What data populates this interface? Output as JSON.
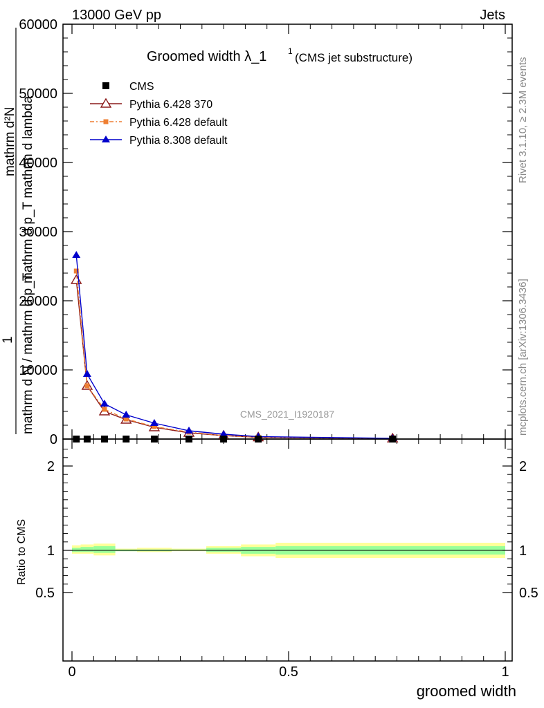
{
  "header": {
    "left": "13000 GeV pp",
    "right": "Jets"
  },
  "title": {
    "main": "Groomed width",
    "symbol": "λ_1",
    "sup": "1",
    "sub": "(CMS jet substructure)"
  },
  "ylabel_top": "mathrm d N / mathrm d p_T mathrm d lambda",
  "ylabel_top_prefix": "1",
  "ylabel_numer": "mathrm d^2N",
  "ylabel_denom": "mathrm d p_T mathrm d lambda",
  "ylabel_full_lines": [
    "mathrm d²N",
    "mathrm d p_T mathrm d lambda",
    "1",
    "mathrm d N / mathrm d p_T"
  ],
  "ratio_ylabel": "Ratio to CMS",
  "xlabel": "groomed width",
  "side_text_top": "Rivet 3.1.10, ≥ 2.3M events",
  "side_text_bottom": "mcplots.cern.ch [arXiv:1306.3436]",
  "watermark": "CMS_2021_I1920187",
  "legend": [
    {
      "label": "CMS",
      "color": "#000000",
      "marker": "square"
    },
    {
      "label": "Pythia 6.428 370",
      "color": "#8b1a1a",
      "marker": "open-triangle"
    },
    {
      "label": "Pythia 6.428 default",
      "color": "#ee7f33",
      "marker": "small-square"
    },
    {
      "label": "Pythia 8.308 default",
      "color": "#0000cc",
      "marker": "triangle"
    }
  ],
  "chart_data": {
    "type": "line",
    "x": [
      0.01,
      0.035,
      0.075,
      0.125,
      0.19,
      0.27,
      0.35,
      0.43,
      0.74
    ],
    "ylim": [
      0,
      60000
    ],
    "xlim": [
      -0.02,
      1.0
    ],
    "yticks": [
      0,
      10000,
      20000,
      30000,
      40000,
      50000,
      60000
    ],
    "ytick_labels": [
      "0",
      "10000",
      "20000",
      "30000",
      "40000",
      "50000",
      "60000"
    ],
    "xticks": [
      0,
      0.5,
      1
    ],
    "xtick_labels": [
      "0",
      "0.5",
      "1"
    ],
    "series": [
      {
        "name": "CMS",
        "values": [
          0,
          0,
          0,
          0,
          0,
          0,
          0,
          0,
          0
        ]
      },
      {
        "name": "Pythia 6.428 370",
        "values": [
          23000,
          7700,
          4000,
          2800,
          1700,
          900,
          500,
          250,
          80
        ]
      },
      {
        "name": "Pythia 6.428 default",
        "values": [
          24300,
          7700,
          4300,
          2900,
          1800,
          1000,
          500,
          250,
          80
        ]
      },
      {
        "name": "Pythia 8.308 default",
        "values": [
          26600,
          9400,
          5100,
          3500,
          2300,
          1200,
          700,
          350,
          100
        ]
      }
    ],
    "ratio": {
      "ylim": [
        0.4,
        2.3
      ],
      "yticks": [
        0.5,
        1,
        2
      ],
      "ytick_labels": [
        "0.5",
        "1",
        "2"
      ],
      "band_edges": [
        0.0,
        0.02,
        0.05,
        0.1,
        0.15,
        0.23,
        0.31,
        0.39,
        0.47,
        1.0
      ],
      "yellow_band": [
        [
          0.96,
          1.06
        ],
        [
          0.96,
          1.07
        ],
        [
          0.94,
          1.08
        ],
        [
          0.99,
          1.02
        ],
        [
          0.98,
          1.03
        ],
        [
          0.99,
          1.02
        ],
        [
          0.96,
          1.05
        ],
        [
          0.93,
          1.07
        ],
        [
          0.91,
          1.09
        ]
      ],
      "green_band": [
        [
          0.98,
          1.03
        ],
        [
          0.98,
          1.04
        ],
        [
          0.97,
          1.05
        ],
        [
          0.99,
          1.01
        ],
        [
          0.99,
          1.01
        ],
        [
          0.995,
          1.01
        ],
        [
          0.98,
          1.03
        ],
        [
          0.96,
          1.04
        ],
        [
          0.95,
          1.05
        ]
      ],
      "yellow_color": "#ffff99",
      "green_color": "#99ff99"
    }
  }
}
